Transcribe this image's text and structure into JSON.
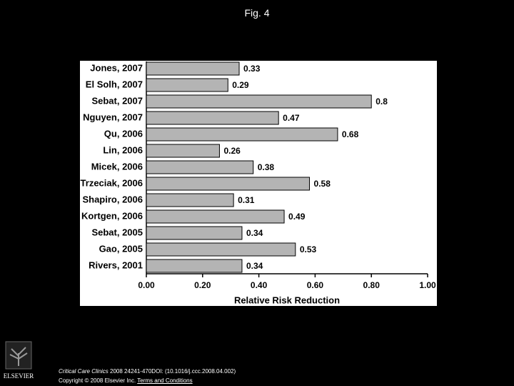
{
  "title": "Fig. 4",
  "chart_data": {
    "type": "bar",
    "orientation": "horizontal",
    "categories": [
      "Jones, 2007",
      "El Solh, 2007",
      "Sebat, 2007",
      "Nguyen, 2007",
      "Qu, 2006",
      "Lin, 2006",
      "Micek, 2006",
      "Trzeciak, 2006",
      "Shapiro, 2006",
      "Kortgen, 2006",
      "Sebat, 2005",
      "Gao, 2005",
      "Rivers, 2001"
    ],
    "values": [
      0.33,
      0.29,
      0.8,
      0.47,
      0.68,
      0.26,
      0.38,
      0.58,
      0.31,
      0.49,
      0.34,
      0.53,
      0.34
    ],
    "color": "#b4b4b4",
    "x_label": "Relative Risk Reduction",
    "xlim": [
      0,
      1
    ],
    "xticks": [
      {
        "value": 0,
        "label": "0.00"
      },
      {
        "value": 0.2,
        "label": "0.20"
      },
      {
        "value": 0.4,
        "label": "0.40"
      },
      {
        "value": 0.6,
        "label": "0.60"
      },
      {
        "value": 0.8,
        "label": "0.80"
      },
      {
        "value": 1,
        "label": "1.00"
      }
    ],
    "grid": false
  },
  "footer": {
    "journal": "Critical Care Clinics",
    "citation": "2008 24241-470DOI: (10.1016/j.ccc.2008.04.002)",
    "copyright": "Copyright © 2008 Elsevier Inc.",
    "link": "Terms and Conditions",
    "logo_text": "ELSEVIER"
  }
}
